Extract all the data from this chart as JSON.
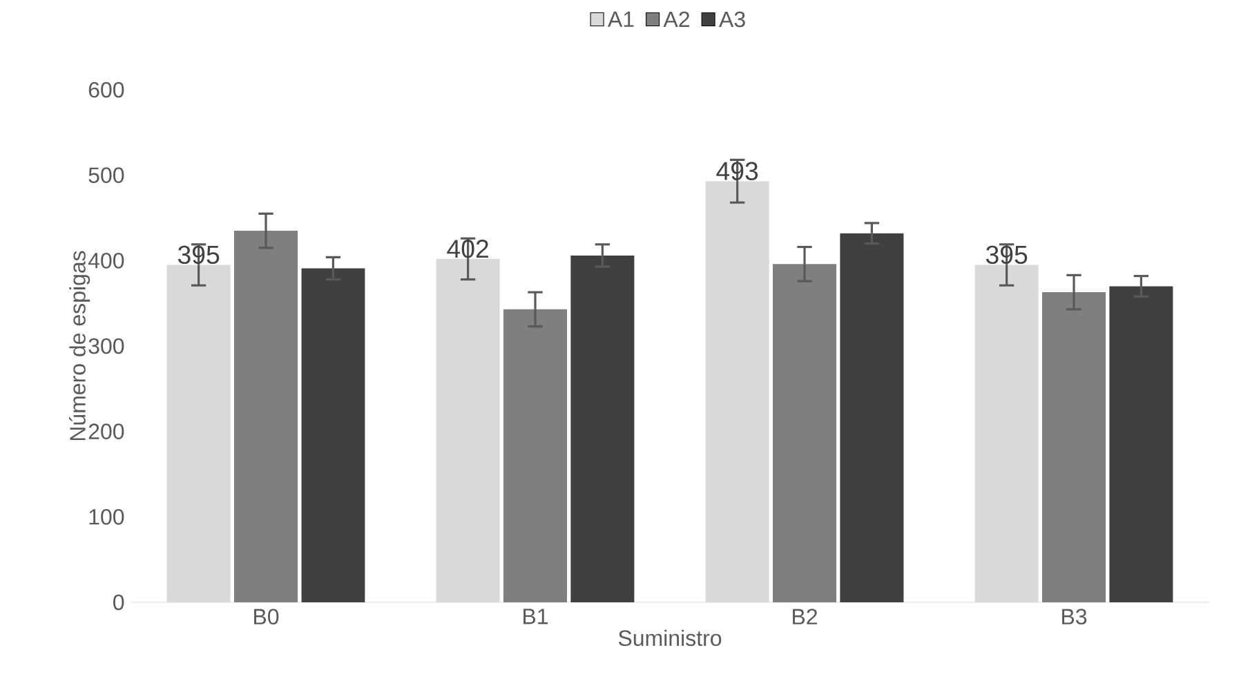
{
  "chart_data": {
    "type": "bar",
    "xlabel": "Suministro",
    "ylabel": "Número de espigas",
    "categories": [
      "B0",
      "B1",
      "B2",
      "B3"
    ],
    "series": [
      {
        "name": "A1",
        "color": "#d9d9d9",
        "values": [
          395,
          402,
          493,
          395
        ],
        "errors": [
          24,
          24,
          25,
          24
        ],
        "value_labels": [
          "395",
          "402",
          "493",
          "395"
        ]
      },
      {
        "name": "A2",
        "color": "#7f7f7f",
        "values": [
          435,
          343,
          396,
          363
        ],
        "errors": [
          20,
          20,
          20,
          20
        ]
      },
      {
        "name": "A3",
        "color": "#404040",
        "values": [
          391,
          406,
          432,
          370
        ],
        "errors": [
          13,
          13,
          12,
          12
        ]
      }
    ],
    "ylim": [
      0,
      600
    ],
    "yticks": [
      0,
      100,
      200,
      300,
      400,
      500,
      600
    ],
    "legend": "top",
    "grid": false
  }
}
